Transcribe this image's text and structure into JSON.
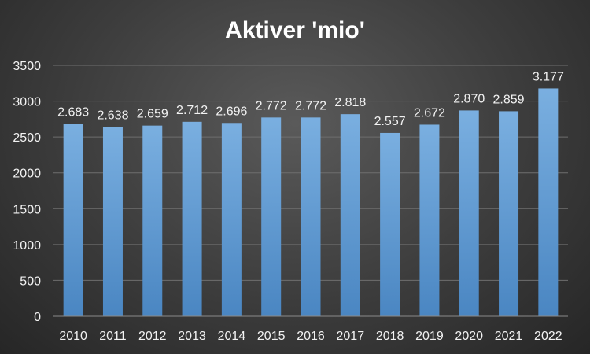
{
  "chart_data": {
    "type": "bar",
    "title": "Aktiver 'mio'",
    "categories": [
      "2010",
      "2011",
      "2012",
      "2013",
      "2014",
      "2015",
      "2016",
      "2017",
      "2018",
      "2019",
      "2020",
      "2021",
      "2022"
    ],
    "values": [
      2683,
      2638,
      2659,
      2712,
      2696,
      2772,
      2772,
      2818,
      2557,
      2672,
      2870,
      2859,
      3177
    ],
    "data_labels": [
      "2.683",
      "2.638",
      "2.659",
      "2.712",
      "2.696",
      "2.772",
      "2.772",
      "2.818",
      "2.557",
      "2.672",
      "2.870",
      "2.859",
      "3.177"
    ],
    "yticks": [
      "0",
      "500",
      "1000",
      "1500",
      "2000",
      "2500",
      "3000",
      "3500"
    ],
    "ylim": [
      0,
      3500
    ],
    "grid": true,
    "legend": "none",
    "colors": {
      "bar": "#5b9bd5",
      "bar_light": "#7aafe0",
      "bar_dark": "#4a86c2"
    }
  }
}
